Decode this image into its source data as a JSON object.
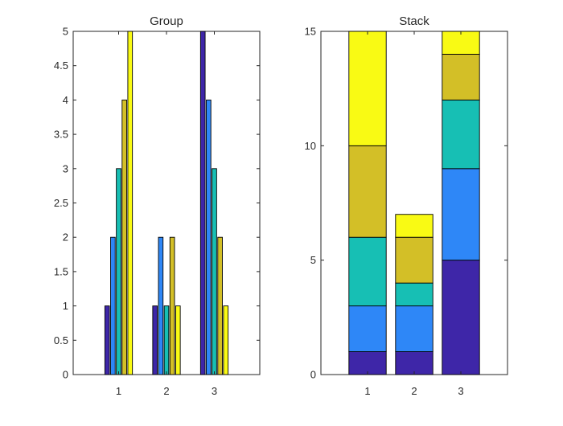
{
  "chart_data": [
    {
      "type": "bar",
      "mode": "grouped",
      "title": "Group",
      "categories": [
        "1",
        "2",
        "3"
      ],
      "series": [
        {
          "values": [
            1,
            1,
            5
          ],
          "color": "#3e26a8"
        },
        {
          "values": [
            2,
            2,
            4
          ],
          "color": "#2e87f7"
        },
        {
          "values": [
            3,
            1,
            3
          ],
          "color": "#17bfb4"
        },
        {
          "values": [
            4,
            2,
            2
          ],
          "color": "#d3bf27"
        },
        {
          "values": [
            5,
            1,
            1
          ],
          "color": "#f9fa14"
        }
      ],
      "xlim": [
        0.05,
        3.95
      ],
      "ylim": [
        0,
        5
      ],
      "yticks": [
        0,
        0.5,
        1,
        1.5,
        2,
        2.5,
        3,
        3.5,
        4,
        4.5,
        5
      ],
      "ytick_labels": [
        "0",
        "0.5",
        "1",
        "1.5",
        "2",
        "2.5",
        "3",
        "3.5",
        "4",
        "4.5",
        "5"
      ],
      "xlabel": "",
      "ylabel": "",
      "grid": false,
      "legend": "none"
    },
    {
      "type": "bar",
      "mode": "stacked",
      "title": "Stack",
      "categories": [
        "1",
        "2",
        "3"
      ],
      "series": [
        {
          "values": [
            1,
            1,
            5
          ],
          "color": "#3e26a8"
        },
        {
          "values": [
            2,
            2,
            4
          ],
          "color": "#2e87f7"
        },
        {
          "values": [
            3,
            1,
            3
          ],
          "color": "#17bfb4"
        },
        {
          "values": [
            4,
            2,
            2
          ],
          "color": "#d3bf27"
        },
        {
          "values": [
            5,
            1,
            1
          ],
          "color": "#f9fa14"
        }
      ],
      "xlim": [
        0,
        4
      ],
      "ylim": [
        0,
        15
      ],
      "yticks": [
        0,
        5,
        10,
        15
      ],
      "ytick_labels": [
        "0",
        "5",
        "10",
        "15"
      ],
      "xlabel": "",
      "ylabel": "",
      "grid": false,
      "legend": "none"
    }
  ]
}
